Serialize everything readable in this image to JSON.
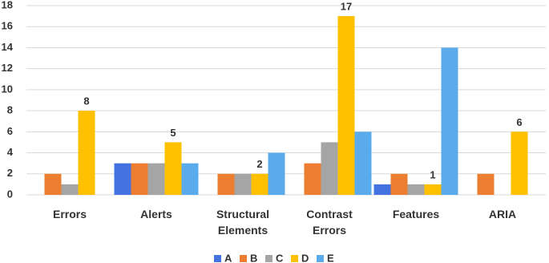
{
  "chart_data": {
    "type": "bar",
    "categories": [
      "Errors",
      "Alerts",
      "Structural Elements",
      "Contrast Errors",
      "Features",
      "ARIA"
    ],
    "series": [
      {
        "name": "A",
        "color": "#4472e0",
        "values": [
          0,
          3,
          0,
          0,
          1,
          0
        ]
      },
      {
        "name": "B",
        "color": "#ed7d31",
        "values": [
          2,
          3,
          2,
          3,
          2,
          2
        ]
      },
      {
        "name": "C",
        "color": "#a5a5a5",
        "values": [
          1,
          3,
          2,
          5,
          1,
          0
        ]
      },
      {
        "name": "D",
        "color": "#ffc000",
        "values": [
          8,
          5,
          2,
          17,
          1,
          6
        ],
        "data_labels": true
      },
      {
        "name": "E",
        "color": "#5aabec",
        "values": [
          0,
          3,
          4,
          6,
          14,
          0
        ]
      }
    ],
    "ylim": [
      0,
      18
    ],
    "yticks": [
      0,
      2,
      4,
      6,
      8,
      10,
      12,
      14,
      16,
      18
    ],
    "grid": true,
    "legend": "bottom"
  }
}
